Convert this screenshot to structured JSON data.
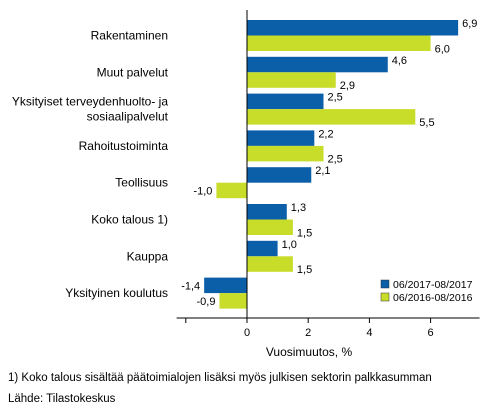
{
  "chart_data": {
    "type": "bar",
    "orientation": "horizontal",
    "categories": [
      "Rakentaminen",
      "Muut palvelut",
      "Yksityiset terveydenhuolto- ja\nsosiaalipalvelut",
      "Rahoitustoiminta",
      "Teollisuus",
      "Koko talous 1)",
      "Kauppa",
      "Yksityinen koulutus"
    ],
    "series": [
      {
        "name": "06/2017-08/2017",
        "color": "#0b5ea8",
        "values": [
          6.9,
          4.6,
          2.5,
          2.2,
          2.1,
          1.3,
          1.0,
          -1.4
        ],
        "labels": [
          "6,9",
          "4,6",
          "2,5",
          "2,2",
          "2,1",
          "1,3",
          "1,0",
          "-1,4"
        ]
      },
      {
        "name": "06/2016-08/2016",
        "color": "#c8dc2a",
        "values": [
          6.0,
          2.9,
          5.5,
          2.5,
          -1.0,
          1.5,
          1.5,
          -0.9
        ],
        "labels": [
          "6,0",
          "2,9",
          "5,5",
          "2,5",
          "-1,0",
          "1,5",
          "1,5",
          "-0,9"
        ]
      }
    ],
    "xlabel": "Vuosimuutos, %",
    "xlim": [
      -2.3,
      7.6
    ],
    "xticks": [
      0,
      2,
      4,
      6
    ],
    "xtick_labels": [
      "0",
      "2",
      "4",
      "6"
    ],
    "grid": false,
    "legend_position": "bottom-right"
  },
  "footnotes": {
    "note": "1) Koko talous sisältää päätoimialojen lisäksi myös julkisen sektorin palkkasumman",
    "source": "Lähde: Tilastokeskus"
  }
}
